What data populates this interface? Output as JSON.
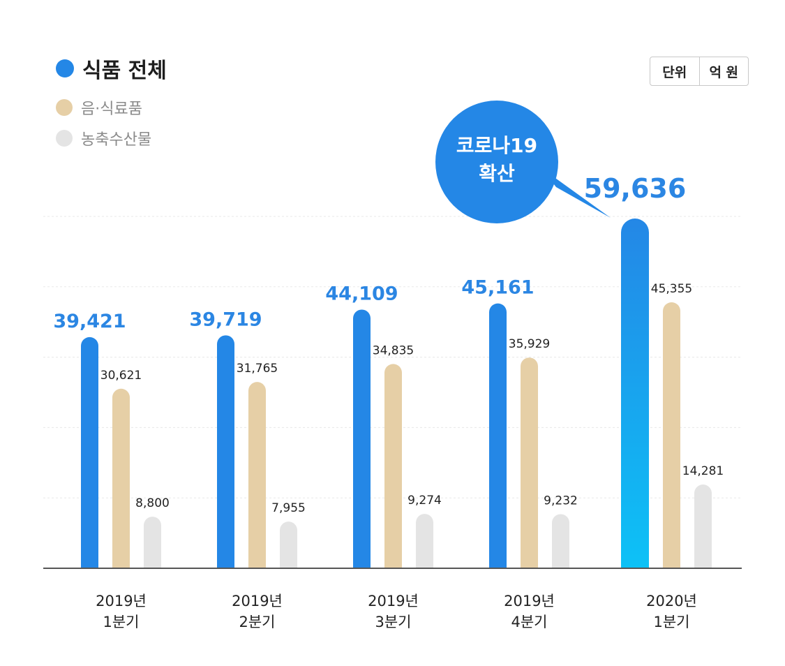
{
  "legend": {
    "total": "식품 전체",
    "processed": "음·식료품",
    "agri": "농축수산물"
  },
  "unit": {
    "label": "단위",
    "value": "억 원"
  },
  "callout": {
    "line1": "코로나19",
    "line2": "확산"
  },
  "colors": {
    "total": "#2487e6",
    "total_highlight_top": "#2487e6",
    "total_highlight_bottom": "#0cc4f7",
    "processed": "#e6cfa6",
    "agri": "#e4e4e4",
    "total_label": "#2b86e3",
    "value_label": "#222222",
    "baseline": "#555555",
    "gridline": "#e8e8e8"
  },
  "chart_data": {
    "type": "bar",
    "title": "",
    "categories": [
      "2019년\n1분기",
      "2019년\n2분기",
      "2019년\n3분기",
      "2019년\n4분기",
      "2020년\n1분기"
    ],
    "series": [
      {
        "name": "식품 전체",
        "values": [
          39421,
          39719,
          44109,
          45161,
          59636
        ],
        "labels": [
          "39,421",
          "39,719",
          "44,109",
          "45,161",
          "59,636"
        ]
      },
      {
        "name": "음·식료품",
        "values": [
          30621,
          31765,
          34835,
          35929,
          45355
        ],
        "labels": [
          "30,621",
          "31,765",
          "34,835",
          "35,929",
          "45,355"
        ]
      },
      {
        "name": "농축수산물",
        "values": [
          8800,
          7955,
          9274,
          9232,
          14281
        ],
        "labels": [
          "8,800",
          "7,955",
          "9,274",
          "9,232",
          "14,281"
        ]
      }
    ],
    "ylim": [
      0,
      60000
    ],
    "grid": true,
    "xlabel": "",
    "ylabel": ""
  }
}
